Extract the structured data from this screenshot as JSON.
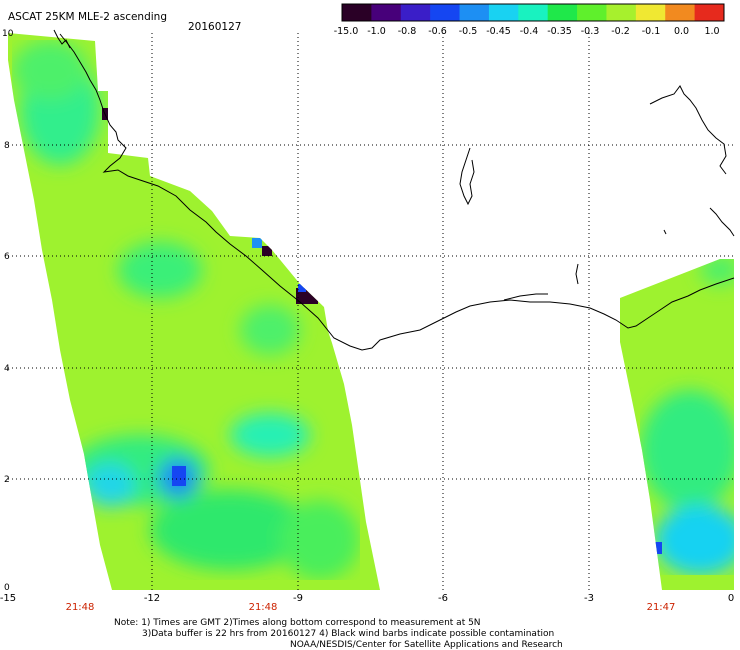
{
  "header": {
    "title": "ASCAT 25KM MLE-2 ascending",
    "date": "20160127"
  },
  "legend": {
    "labels": [
      "-15.0",
      "-1.0",
      "-0.8",
      "-0.6",
      "-0.5",
      "-0.45",
      "-0.4",
      "-0.35",
      "-0.3",
      "-0.2",
      "-0.1",
      "0.0",
      "1.0"
    ],
    "colors": [
      "#2a0026",
      "#47007a",
      "#3a1ec8",
      "#1546f2",
      "#1d8ff3",
      "#19d2f2",
      "#19f2c0",
      "#1fe84a",
      "#5ff02c",
      "#a7f02d",
      "#f0e832",
      "#f28a1f",
      "#e62a1d"
    ]
  },
  "axes": {
    "x_ticks": [
      "-15",
      "-12",
      "-9",
      "-6",
      "-3",
      "0"
    ],
    "y_ticks": [
      "0",
      "2",
      "4",
      "6",
      "8",
      "10"
    ]
  },
  "pass_times": [
    "21:48",
    "21:48",
    "21:47"
  ],
  "notes": {
    "line1": "Note: 1) Times are GMT 2)Times along bottom correspond to measurement at 5N",
    "line2": "3)Data buffer is 22 hrs from 20160127 4) Black wind barbs indicate possible contamination",
    "line3": "NOAA/NESDIS/Center for Satellite Applications and Research"
  },
  "style": {
    "time_color": "#cc2200",
    "grid_color": "#000000",
    "coast_color": "#000000"
  }
}
